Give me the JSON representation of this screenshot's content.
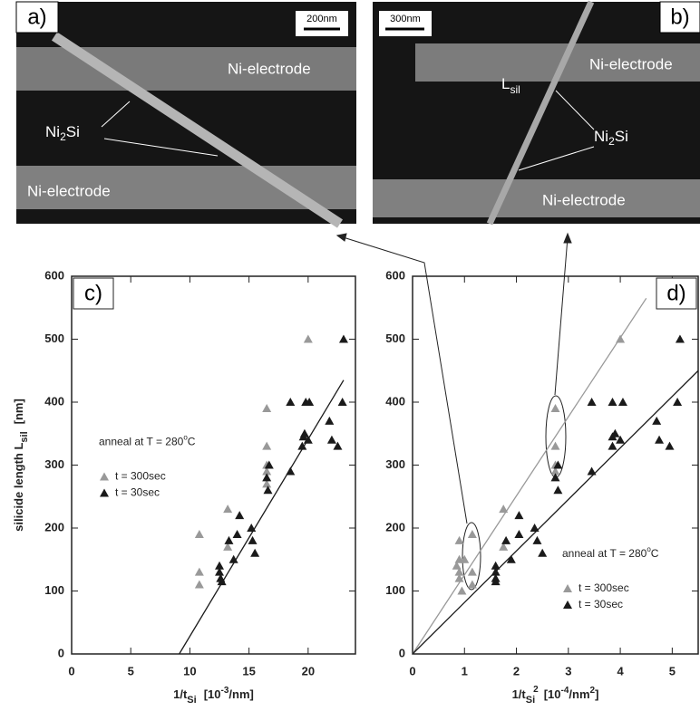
{
  "images": [
    {
      "label": "a)",
      "scale": "200nm",
      "electrode_top": "Ni-electrode",
      "electrode_bottom": "Ni-electrode",
      "silicide": [
        "Ni",
        "2",
        "Si"
      ]
    },
    {
      "label": "b)",
      "scale": "300nm",
      "electrode_top": "Ni-electrode",
      "electrode_bottom": "Ni-electrode",
      "silicide": [
        "Ni",
        "2",
        "Si"
      ],
      "length": [
        "L",
        "sil"
      ]
    }
  ],
  "chart_data": [
    {
      "type": "scatter",
      "panel": "c)",
      "xlabel": [
        "1/t",
        "Si",
        "[10",
        "-3",
        "/nm]"
      ],
      "ylabel": [
        "silicide length L",
        "sil",
        "[nm]"
      ],
      "annotation": [
        "anneal at T = 280",
        "o",
        "C"
      ],
      "xlim": [
        0,
        24
      ],
      "ylim": [
        0,
        600
      ],
      "xticks": [
        0,
        5,
        10,
        15,
        20
      ],
      "yticks": [
        0,
        100,
        200,
        300,
        400,
        500,
        600
      ],
      "legend": "center-left",
      "series": [
        {
          "name": "t = 300sec",
          "color": "#999999",
          "x": [
            10.8,
            10.8,
            10.8,
            13.2,
            13.2,
            16.5,
            16.5,
            16.5,
            16.5,
            16.5,
            20
          ],
          "values": [
            190,
            130,
            110,
            230,
            170,
            390,
            330,
            300,
            290,
            270,
            500
          ]
        },
        {
          "name": "t = 30sec",
          "color": "#1a1a1a",
          "x": [
            12.5,
            12.5,
            12.6,
            12.7,
            13.3,
            13.7,
            14,
            14.2,
            15.2,
            15.3,
            15.5,
            16.5,
            16.6,
            16.7,
            18.5,
            18.5,
            19.5,
            19.6,
            19.7,
            20,
            20.1,
            19.8,
            21.8,
            22,
            22.5,
            23,
            22.9
          ],
          "values": [
            140,
            130,
            120,
            115,
            180,
            150,
            190,
            220,
            200,
            180,
            160,
            280,
            260,
            300,
            400,
            290,
            330,
            345,
            350,
            340,
            400,
            400,
            370,
            340,
            330,
            500,
            400
          ]
        }
      ],
      "fits": [
        {
          "color": "#1a1a1a",
          "x": [
            9.1,
            23
          ],
          "y": [
            0,
            435
          ]
        }
      ]
    },
    {
      "type": "scatter",
      "panel": "d)",
      "xlabel": [
        "1/t",
        "Si",
        "2",
        "[10",
        "-4",
        "/nm",
        "2",
        "]"
      ],
      "annotation": [
        "anneal at T = 280",
        "o",
        "C"
      ],
      "xlim": [
        0,
        5.5
      ],
      "ylim": [
        0,
        600
      ],
      "xticks": [
        0,
        1,
        2,
        3,
        4,
        5
      ],
      "yticks": [
        0,
        100,
        200,
        300,
        400,
        500,
        600
      ],
      "legend": "lower-right",
      "series": [
        {
          "name": "t = 300sec",
          "color": "#999999",
          "x": [
            0.9,
            0.9,
            0.85,
            0.9,
            0.9,
            0.95,
            1.0,
            1.15,
            1.15,
            1.15,
            1.75,
            1.75,
            2.75,
            2.75,
            2.75,
            2.75,
            4.0
          ],
          "values": [
            180,
            150,
            140,
            130,
            120,
            100,
            150,
            190,
            130,
            110,
            230,
            170,
            390,
            330,
            300,
            290,
            500
          ]
        },
        {
          "name": "t = 30sec",
          "color": "#1a1a1a",
          "x": [
            1.6,
            1.6,
            1.6,
            1.6,
            1.8,
            1.9,
            2.05,
            2.05,
            2.35,
            2.4,
            2.5,
            2.75,
            2.8,
            2.8,
            3.45,
            3.45,
            3.85,
            3.85,
            3.9,
            4.0,
            4.05,
            3.85,
            4.7,
            4.75,
            4.95,
            5.15,
            5.1
          ],
          "values": [
            140,
            130,
            120,
            115,
            180,
            150,
            190,
            220,
            200,
            180,
            160,
            280,
            260,
            300,
            400,
            290,
            330,
            345,
            350,
            340,
            400,
            400,
            370,
            340,
            330,
            500,
            400
          ]
        }
      ],
      "fits": [
        {
          "color": "#999999",
          "x": [
            0,
            4.5
          ],
          "y": [
            0,
            565
          ]
        },
        {
          "color": "#1a1a1a",
          "x": [
            0,
            5.5
          ],
          "y": [
            0,
            450
          ]
        }
      ]
    }
  ]
}
